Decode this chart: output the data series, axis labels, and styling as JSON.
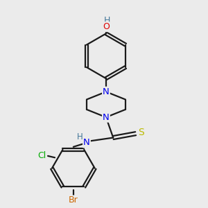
{
  "bg_color": "#ebebeb",
  "bond_color": "#1a1a1a",
  "bond_width": 1.6,
  "atom_colors": {
    "N": "#0000ee",
    "O": "#dd0000",
    "S": "#bbbb00",
    "Cl": "#00aa00",
    "Br": "#cc6600",
    "H": "#447799",
    "C": "#1a1a1a"
  },
  "font_size": 8.5
}
